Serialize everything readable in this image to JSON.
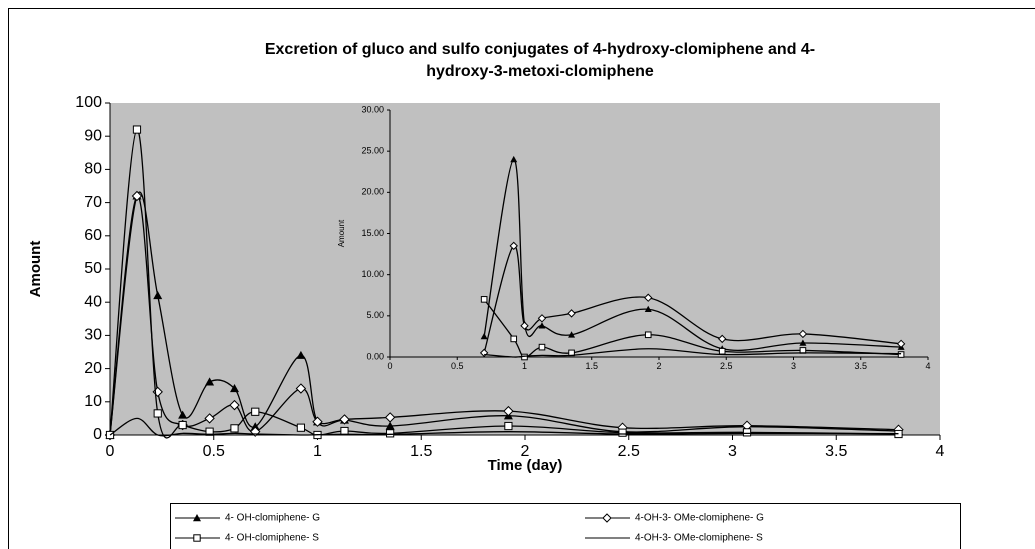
{
  "chart_data": [
    {
      "type": "line",
      "title_lines": [
        "Excretion of gluco and sulfo conjugates of 4-hydroxy-clomiphene and 4-",
        "hydroxy-3-metoxi-clomiphene"
      ],
      "xlabel": "Time (day)",
      "ylabel": "Amount",
      "x": [
        0,
        0.13,
        0.23,
        0.35,
        0.48,
        0.6,
        0.7,
        0.92,
        1,
        1.13,
        1.35,
        1.92,
        2.47,
        3.07,
        3.8
      ],
      "xlim": [
        0,
        4
      ],
      "xticks": [
        0,
        0.5,
        1,
        1.5,
        2,
        2.5,
        3,
        3.5,
        4
      ],
      "ylim": [
        0,
        100
      ],
      "yticks": [
        0,
        10,
        20,
        30,
        40,
        50,
        60,
        70,
        80,
        90,
        100
      ],
      "legend": "bottom",
      "plot_color": "#c0c0c0",
      "series": [
        {
          "name": "4- OH-clomiphene- G",
          "color": "#000000",
          "marker": "triangle",
          "values": [
            0,
            72,
            42,
            6,
            16,
            14,
            2.5,
            24,
            4,
            4.5,
            2.7,
            5.8,
            1,
            2.5,
            1.2
          ]
        },
        {
          "name": "4-OH-3- OMe-clomiphene- G",
          "color": "#000000",
          "marker": "diamond",
          "values": [
            0,
            72,
            13,
            3,
            5,
            9,
            1,
            14,
            4,
            4.7,
            5.3,
            7.2,
            2.2,
            2.8,
            1.6
          ]
        },
        {
          "name": "4- OH-clomiphene- S",
          "color": "#000000",
          "marker": "square",
          "values": [
            0,
            92,
            6.5,
            3,
            1,
            2,
            7,
            2.2,
            0,
            1.2,
            0.5,
            2.7,
            0.7,
            0.8,
            0.3
          ]
        },
        {
          "name": "4-OH-3- OMe-clomiphene- S",
          "color": "#000000",
          "marker": "none",
          "values": [
            0,
            5,
            0,
            0.5,
            0.2,
            0.5,
            0.3,
            0,
            0.1,
            0.2,
            0.2,
            1,
            0.3,
            0.5,
            0.4
          ]
        }
      ]
    },
    {
      "type": "line",
      "ylabel": "Amount",
      "x": [
        0.7,
        0.92,
        1,
        1.13,
        1.35,
        1.92,
        2.47,
        3.07,
        3.8
      ],
      "xlim": [
        0,
        4
      ],
      "xticks": [
        0,
        0.5,
        1,
        1.5,
        2,
        2.5,
        3,
        3.5,
        4
      ],
      "ylim": [
        0,
        30
      ],
      "yticks": [
        {
          "value": 0,
          "label": "0.00"
        },
        {
          "value": 5,
          "label": "5.00"
        },
        {
          "value": 10,
          "label": "10.00"
        },
        {
          "value": 15,
          "label": "15.00"
        },
        {
          "value": 20,
          "label": "20.00"
        },
        {
          "value": 25,
          "label": "25.00"
        },
        {
          "value": 30,
          "label": "30.00"
        }
      ],
      "plot_color": "#c0c0c0",
      "series": [
        {
          "color": "#000000",
          "marker": "triangle",
          "values": [
            2.5,
            24,
            4,
            3.8,
            2.7,
            5.8,
            1,
            1.7,
            1.2
          ]
        },
        {
          "color": "#000000",
          "marker": "diamond",
          "values": [
            0.5,
            13.5,
            3.8,
            4.7,
            5.3,
            7.2,
            2.2,
            2.8,
            1.6
          ]
        },
        {
          "color": "#000000",
          "marker": "square",
          "values": [
            7,
            2.2,
            0,
            1.2,
            0.5,
            2.7,
            0.7,
            0.8,
            0.3
          ]
        },
        {
          "color": "#000000",
          "marker": "none",
          "values": [
            0.3,
            0,
            0.1,
            0.2,
            0.2,
            1,
            0.3,
            0.5,
            0.4
          ]
        }
      ]
    }
  ]
}
